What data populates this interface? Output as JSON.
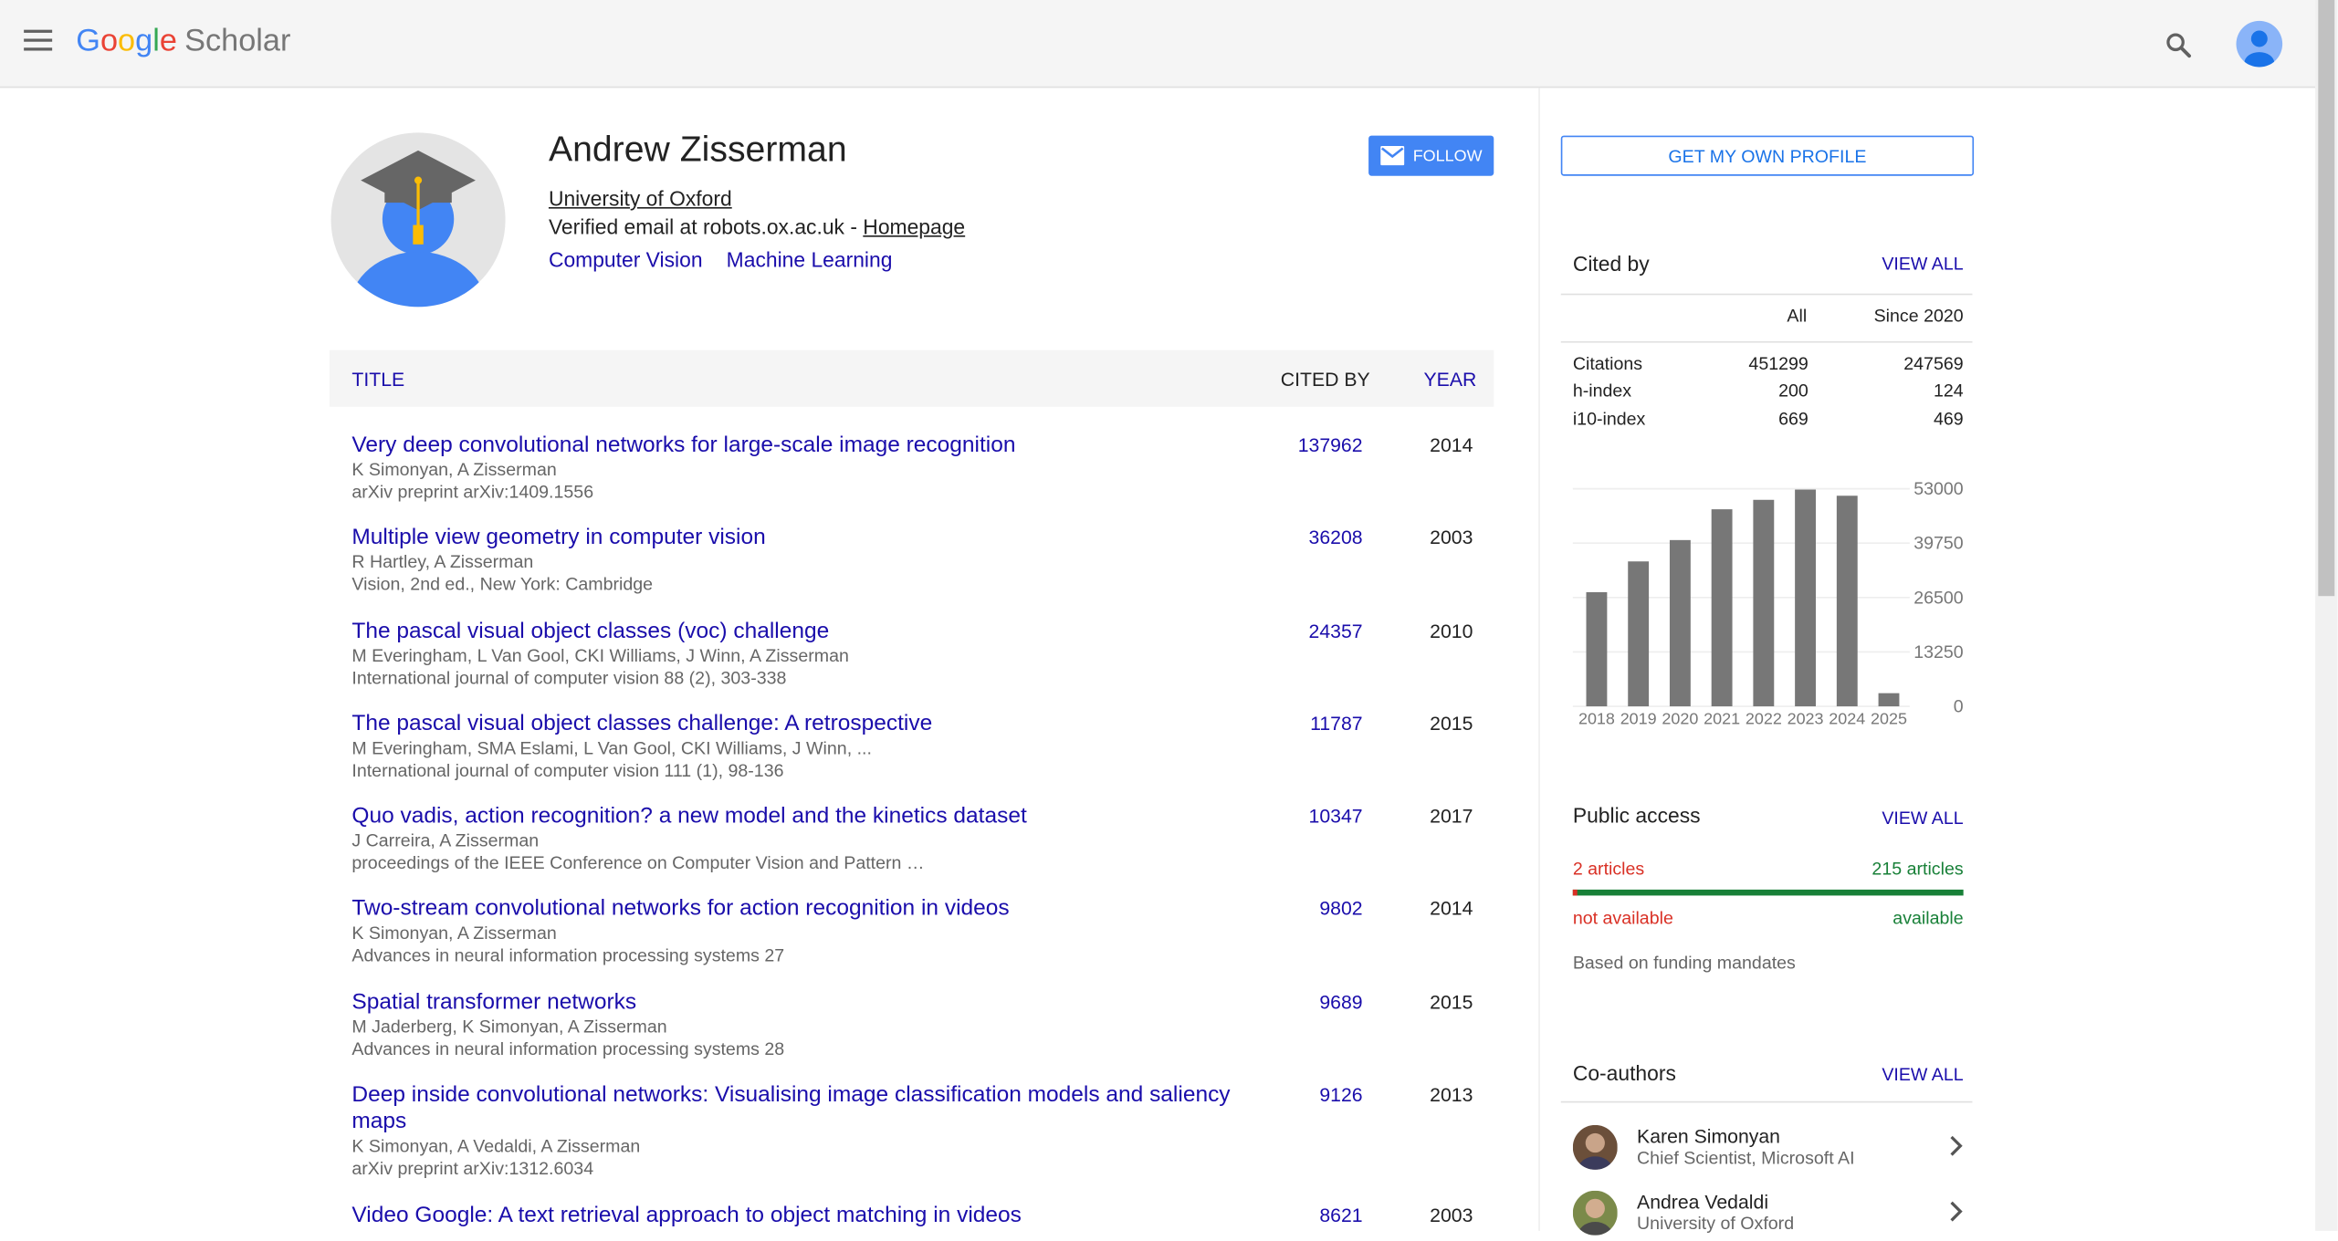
{
  "topbar": {
    "logo_letters": [
      {
        "ch": "G",
        "color": "#4285f4"
      },
      {
        "ch": "o",
        "color": "#ea4335"
      },
      {
        "ch": "o",
        "color": "#fbbc05"
      },
      {
        "ch": "g",
        "color": "#4285f4"
      },
      {
        "ch": "l",
        "color": "#34a853"
      },
      {
        "ch": "e",
        "color": "#ea4335"
      }
    ],
    "product": "Scholar",
    "menu_icon": "hamburger-icon",
    "search_icon": "search-icon",
    "account_icon": "account-avatar"
  },
  "profile": {
    "name": "Andrew Zisserman",
    "affiliation": "University of Oxford",
    "email_text": "Verified email at robots.ox.ac.uk - ",
    "homepage": "Homepage",
    "interests": [
      "Computer Vision",
      "Machine Learning"
    ],
    "follow_label": "FOLLOW"
  },
  "table": {
    "col_title": "TITLE",
    "col_cited": "CITED BY",
    "col_year": "YEAR",
    "rows": [
      {
        "title": "Very deep convolutional networks for large-scale image recognition",
        "authors": "K Simonyan, A Zisserman",
        "venue": "arXiv preprint arXiv:1409.1556",
        "cited": "137962",
        "year": "2014"
      },
      {
        "title": "Multiple view geometry in computer vision",
        "authors": "R Hartley, A Zisserman",
        "venue": "Vision, 2nd ed., New York: Cambridge",
        "cited": "36208",
        "year": "2003"
      },
      {
        "title": "The pascal visual object classes (voc) challenge",
        "authors": "M Everingham, L Van Gool, CKI Williams, J Winn, A Zisserman",
        "venue": "International journal of computer vision 88 (2), 303-338",
        "cited": "24357",
        "year": "2010"
      },
      {
        "title": "The pascal visual object classes challenge: A retrospective",
        "authors": "M Everingham, SMA Eslami, L Van Gool, CKI Williams, J Winn, ...",
        "venue": "International journal of computer vision 111 (1), 98-136",
        "cited": "11787",
        "year": "2015"
      },
      {
        "title": "Quo vadis, action recognition? a new model and the kinetics dataset",
        "authors": "J Carreira, A Zisserman",
        "venue": "proceedings of the IEEE Conference on Computer Vision and Pattern …",
        "cited": "10347",
        "year": "2017"
      },
      {
        "title": "Two-stream convolutional networks for action recognition in videos",
        "authors": "K Simonyan, A Zisserman",
        "venue": "Advances in neural information processing systems 27",
        "cited": "9802",
        "year": "2014"
      },
      {
        "title": "Spatial transformer networks",
        "authors": "M Jaderberg, K Simonyan, A Zisserman",
        "venue": "Advances in neural information processing systems 28",
        "cited": "9689",
        "year": "2015"
      },
      {
        "title": "Deep inside convolutional networks: Visualising image classification models and saliency maps",
        "authors": "K Simonyan, A Vedaldi, A Zisserman",
        "venue": "arXiv preprint arXiv:1312.6034",
        "cited": "9126",
        "year": "2013"
      },
      {
        "title": "Video Google: A text retrieval approach to object matching in videos",
        "authors": "",
        "venue": "",
        "cited": "8621",
        "year": "2003"
      }
    ]
  },
  "right": {
    "own_profile_label": "GET MY OWN PROFILE",
    "cited_by": {
      "title": "Cited by",
      "view_all": "VIEW ALL",
      "col_all": "All",
      "col_since": "Since 2020",
      "rows": [
        {
          "label": "Citations",
          "all": "451299",
          "since": "247569"
        },
        {
          "label": "h-index",
          "all": "200",
          "since": "124"
        },
        {
          "label": "i10-index",
          "all": "669",
          "since": "469"
        }
      ]
    },
    "public_access": {
      "title": "Public access",
      "view_all": "VIEW ALL",
      "left_count": "2 articles",
      "right_count": "215 articles",
      "left_label": "not available",
      "right_label": "available",
      "note": "Based on funding mandates",
      "available_fraction": 0.99,
      "colors": {
        "available": "#188038",
        "not_available": "#d93025"
      }
    },
    "coauthors": {
      "title": "Co-authors",
      "view_all": "VIEW ALL",
      "items": [
        {
          "name": "Karen Simonyan",
          "affiliation": "Chief Scientist, Microsoft AI"
        },
        {
          "name": "Andrea Vedaldi",
          "affiliation": "University of Oxford"
        }
      ]
    }
  },
  "chart_data": {
    "type": "bar",
    "categories": [
      "2018",
      "2019",
      "2020",
      "2021",
      "2022",
      "2023",
      "2024",
      "2025"
    ],
    "values": [
      27800,
      35300,
      40500,
      48000,
      50300,
      52800,
      51300,
      3200
    ],
    "yticks": [
      "53000",
      "39750",
      "26500",
      "13250",
      "0"
    ],
    "ylim": [
      0,
      53000
    ],
    "bar_color": "#777777"
  }
}
